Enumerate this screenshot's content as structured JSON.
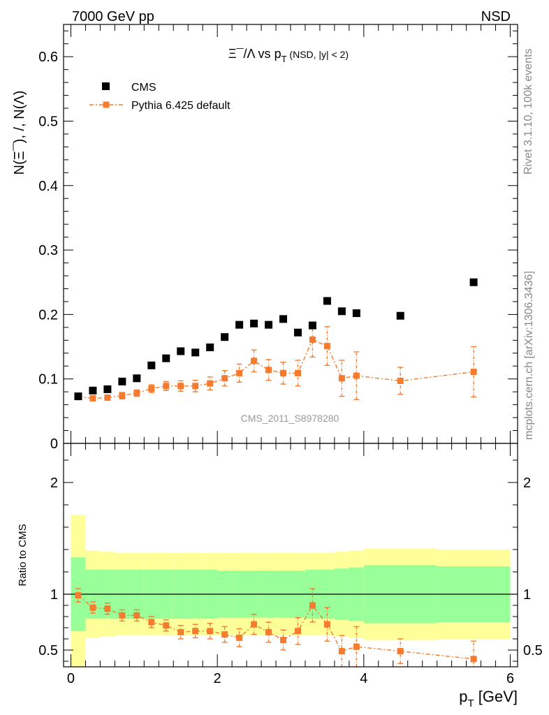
{
  "header": {
    "left": "7000 GeV pp",
    "right": "NSD"
  },
  "side_labels": {
    "rivet": "Rivet 3.1.10,  100k events",
    "mcplots": "mcplots.cern.ch [arXiv:1306.3436]"
  },
  "chart_data": [
    {
      "type": "scatter",
      "title_main": "Ξ¯/Λ  vs p",
      "title_sub": "T",
      "title_tail": " (NSD, |y| < 2)",
      "ylabel": "N(Ξ¯), /, N(Λ)",
      "watermark": "CMS_2011_S8978280",
      "xlim": [
        -0.1,
        6.1
      ],
      "ylim": [
        0,
        0.65
      ],
      "y_ticks": [
        0,
        0.1,
        0.2,
        0.3,
        0.4,
        0.5,
        0.6
      ],
      "y_tick_labels": [
        "0",
        "0.1",
        "0.2",
        "0.3",
        "0.4",
        "0.5",
        "0.6"
      ],
      "legend_position": "top-left",
      "series": [
        {
          "name": "CMS",
          "color": "#000000",
          "marker": "square",
          "x": [
            0.1,
            0.3,
            0.5,
            0.7,
            0.9,
            1.1,
            1.3,
            1.5,
            1.7,
            1.9,
            2.1,
            2.3,
            2.5,
            2.7,
            2.9,
            3.1,
            3.3,
            3.5,
            3.7,
            3.9,
            4.5,
            5.5
          ],
          "y": [
            0.073,
            0.082,
            0.084,
            0.096,
            0.101,
            0.121,
            0.132,
            0.143,
            0.141,
            0.149,
            0.165,
            0.184,
            0.186,
            0.184,
            0.193,
            0.172,
            0.183,
            0.221,
            0.205,
            0.202,
            0.198,
            0.25
          ]
        },
        {
          "name": "Pythia 6.425 default",
          "color": "#f57b2e",
          "marker": "square",
          "line": "dash-dot",
          "x": [
            0.1,
            0.3,
            0.5,
            0.7,
            0.9,
            1.1,
            1.3,
            1.5,
            1.7,
            1.9,
            2.1,
            2.3,
            2.5,
            2.7,
            2.9,
            3.1,
            3.3,
            3.5,
            3.7,
            3.9,
            4.5,
            5.5
          ],
          "y": [
            0.072,
            0.07,
            0.071,
            0.074,
            0.078,
            0.085,
            0.089,
            0.089,
            0.089,
            0.093,
            0.101,
            0.109,
            0.128,
            0.114,
            0.109,
            0.109,
            0.161,
            0.151,
            0.101,
            0.105,
            0.097,
            0.111
          ],
          "yerr": [
            0.004,
            0.004,
            0.004,
            0.005,
            0.005,
            0.006,
            0.007,
            0.008,
            0.009,
            0.01,
            0.012,
            0.014,
            0.017,
            0.016,
            0.017,
            0.02,
            0.027,
            0.03,
            0.028,
            0.037,
            0.021,
            0.039
          ]
        }
      ]
    },
    {
      "type": "scatter",
      "ylabel": "Ratio to CMS",
      "xlabel_main": "p",
      "xlabel_sub": "T",
      "xlabel_tail": " [GeV]",
      "xlim": [
        -0.1,
        6.1
      ],
      "ylim": [
        0.35,
        2.35
      ],
      "y_ticks": [
        0.5,
        1,
        2
      ],
      "y_tick_labels": [
        "0.5",
        "1",
        "2"
      ],
      "x_ticks": [
        0,
        2,
        4,
        6
      ],
      "x_tick_labels": [
        "0",
        "2",
        "4",
        "6"
      ],
      "reference_line": 1,
      "bands": {
        "edges": [
          0,
          0.2,
          0.4,
          0.6,
          0.8,
          1.0,
          1.2,
          1.4,
          1.6,
          1.8,
          2.0,
          2.2,
          2.4,
          2.6,
          2.8,
          3.0,
          3.2,
          3.4,
          3.6,
          3.8,
          4.0,
          5.0,
          6.0
        ],
        "green_half": [
          0.33,
          0.22,
          0.22,
          0.22,
          0.22,
          0.22,
          0.22,
          0.22,
          0.22,
          0.22,
          0.21,
          0.21,
          0.21,
          0.21,
          0.21,
          0.21,
          0.22,
          0.22,
          0.23,
          0.24,
          0.26,
          0.25
        ],
        "yellow_half": [
          0.71,
          0.39,
          0.38,
          0.37,
          0.37,
          0.37,
          0.37,
          0.37,
          0.37,
          0.37,
          0.37,
          0.37,
          0.37,
          0.37,
          0.37,
          0.37,
          0.37,
          0.37,
          0.38,
          0.39,
          0.41,
          0.4
        ],
        "green_color": "#99ff99",
        "yellow_color": "#ffff99"
      },
      "series": [
        {
          "name": "Pythia 6.425 default",
          "color": "#f57b2e",
          "marker": "square",
          "line": "dash-dot",
          "x": [
            0.1,
            0.3,
            0.5,
            0.7,
            0.9,
            1.1,
            1.3,
            1.5,
            1.7,
            1.9,
            2.1,
            2.3,
            2.5,
            2.7,
            2.9,
            3.1,
            3.3,
            3.5,
            3.7,
            3.9,
            4.5,
            5.5
          ],
          "y": [
            0.99,
            0.88,
            0.87,
            0.81,
            0.81,
            0.75,
            0.72,
            0.66,
            0.67,
            0.67,
            0.64,
            0.61,
            0.73,
            0.66,
            0.59,
            0.67,
            0.9,
            0.73,
            0.49,
            0.53,
            0.49,
            0.42
          ],
          "yerr": [
            0.06,
            0.05,
            0.05,
            0.05,
            0.05,
            0.05,
            0.05,
            0.06,
            0.06,
            0.07,
            0.07,
            0.08,
            0.09,
            0.09,
            0.09,
            0.12,
            0.15,
            0.15,
            0.14,
            0.18,
            0.11,
            0.16
          ]
        }
      ]
    }
  ]
}
